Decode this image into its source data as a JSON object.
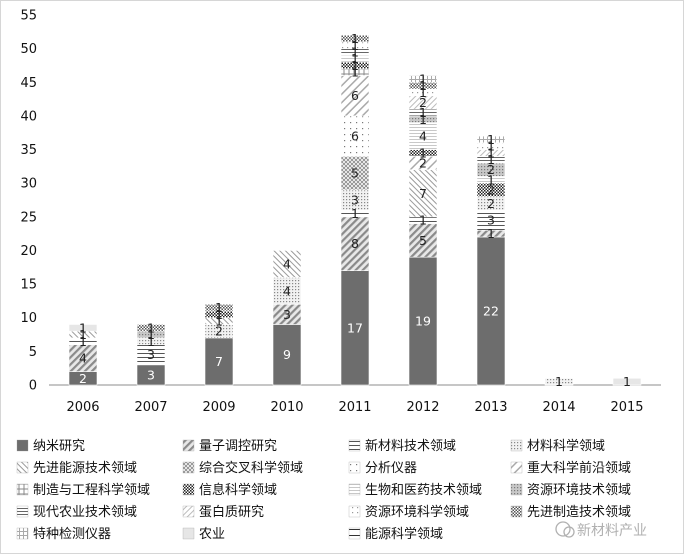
{
  "chart_data": {
    "type": "bar",
    "stacked": true,
    "ylim": [
      0,
      55
    ],
    "yticks": [
      0,
      5,
      10,
      15,
      20,
      25,
      30,
      35,
      40,
      45,
      50,
      55
    ],
    "grid": false,
    "legend_position": "bottom",
    "categories": [
      "2006",
      "2007",
      "2009",
      "2010",
      "2011",
      "2012",
      "2013",
      "2014",
      "2015"
    ],
    "series": [
      {
        "name": "纳米研究",
        "values": [
          2,
          3,
          7,
          9,
          17,
          19,
          22,
          0,
          0
        ]
      },
      {
        "name": "量子调控研究",
        "values": [
          4,
          0,
          0,
          3,
          8,
          5,
          1,
          0,
          0
        ]
      },
      {
        "name": "新材料技术领域",
        "values": [
          1,
          3,
          0,
          0,
          1,
          1,
          3,
          0,
          0
        ]
      },
      {
        "name": "材料科学领域",
        "values": [
          0,
          1,
          2,
          4,
          3,
          0,
          2,
          1,
          0
        ]
      },
      {
        "name": "先进能源技术领域",
        "values": [
          1,
          0,
          1,
          4,
          0,
          7,
          0,
          0,
          0
        ]
      },
      {
        "name": "综合交叉科学领域",
        "values": [
          0,
          0,
          0,
          0,
          5,
          0,
          0,
          0,
          0
        ]
      },
      {
        "name": "分析仪器",
        "values": [
          0,
          0,
          0,
          0,
          6,
          0,
          0,
          0,
          0
        ]
      },
      {
        "name": "重大科学前沿领域",
        "values": [
          0,
          0,
          0,
          0,
          6,
          2,
          0,
          0,
          0
        ]
      },
      {
        "name": "制造与工程科学领域",
        "values": [
          0,
          0,
          0,
          0,
          1,
          0,
          0,
          0,
          0
        ]
      },
      {
        "name": "信息科学领域",
        "values": [
          0,
          0,
          1,
          0,
          1,
          1,
          2,
          0,
          0
        ]
      },
      {
        "name": "生物和医药技术领域",
        "values": [
          0,
          0,
          0,
          0,
          1,
          4,
          1,
          0,
          0
        ]
      },
      {
        "name": "资源环境技术领域",
        "values": [
          0,
          1,
          0,
          0,
          0,
          1,
          2,
          0,
          0
        ]
      },
      {
        "name": "现代农业技术领域",
        "values": [
          0,
          0,
          0,
          0,
          1,
          1,
          1,
          0,
          0
        ]
      },
      {
        "name": "蛋白质研究",
        "values": [
          0,
          0,
          0,
          0,
          0,
          2,
          1,
          0,
          0
        ]
      },
      {
        "name": "资源环境科学领域",
        "values": [
          0,
          0,
          0,
          0,
          1,
          1,
          1,
          0,
          0
        ]
      },
      {
        "name": "先进制造技术领域",
        "values": [
          0,
          1,
          1,
          0,
          1,
          1,
          0,
          0,
          0
        ]
      },
      {
        "name": "特种检测仪器",
        "values": [
          0,
          0,
          0,
          0,
          0,
          1,
          1,
          0,
          0
        ]
      },
      {
        "name": "农业",
        "values": [
          1,
          0,
          0,
          0,
          0,
          0,
          0,
          0,
          1
        ]
      },
      {
        "name": "能源科学领域",
        "values": [
          0,
          0,
          0,
          0,
          0,
          0,
          0,
          0,
          0
        ]
      }
    ]
  },
  "watermark": "新材料产业",
  "colors": {
    "dark": "#6d6d6d",
    "mid": "#8a8a8a",
    "light": "#bdbdbd",
    "lightest": "#dcdcdc",
    "black": "#222222"
  }
}
